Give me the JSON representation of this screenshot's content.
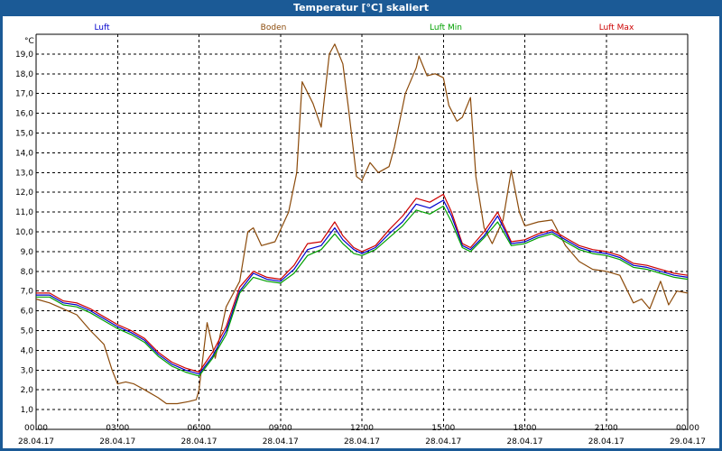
{
  "window": {
    "title": "Temperatur [°C] skaliert"
  },
  "colors": {
    "frame": "#1b5a96",
    "grid": "#000000",
    "luft": "#0000cc",
    "boden": "#8b4a0a",
    "luft_min": "#00a000",
    "luft_max": "#cc0000",
    "base": "#111111"
  },
  "chart_data": {
    "type": "line",
    "ylabel": "°C",
    "ylim": [
      0.0,
      20.0
    ],
    "yticks": [
      "1,0",
      "2,0",
      "3,0",
      "4,0",
      "5,0",
      "6,0",
      "7,0",
      "8,0",
      "9,0",
      "10,0",
      "11,0",
      "12,0",
      "13,0",
      "14,0",
      "15,0",
      "16,0",
      "17,0",
      "18,0",
      "19,0"
    ],
    "xticks": [
      {
        "time": "00:00",
        "date": "28.04.17"
      },
      {
        "time": "03:00",
        "date": "28.04.17"
      },
      {
        "time": "06:00",
        "date": "28.04.17"
      },
      {
        "time": "09:00",
        "date": "28.04.17"
      },
      {
        "time": "12:00",
        "date": "28.04.17"
      },
      {
        "time": "15:00",
        "date": "28.04.17"
      },
      {
        "time": "18:00",
        "date": "28.04.17"
      },
      {
        "time": "21:00",
        "date": "28.04.17"
      },
      {
        "time": "00:00",
        "date": "29.04.17"
      }
    ],
    "xlim_hours": [
      0,
      24
    ],
    "grid": true,
    "legend_position": "top",
    "series": [
      {
        "name": "Luft",
        "color": "#0000cc",
        "points": [
          [
            0,
            6.8
          ],
          [
            0.5,
            6.8
          ],
          [
            1,
            6.4
          ],
          [
            1.5,
            6.3
          ],
          [
            2,
            6.0
          ],
          [
            2.5,
            5.6
          ],
          [
            3,
            5.2
          ],
          [
            3.5,
            4.9
          ],
          [
            4,
            4.5
          ],
          [
            4.5,
            3.8
          ],
          [
            5,
            3.3
          ],
          [
            5.5,
            3.0
          ],
          [
            6,
            2.8
          ],
          [
            6.5,
            3.7
          ],
          [
            7,
            5.0
          ],
          [
            7.5,
            7.0
          ],
          [
            8,
            7.9
          ],
          [
            8.5,
            7.6
          ],
          [
            9,
            7.5
          ],
          [
            9.5,
            8.1
          ],
          [
            10,
            9.1
          ],
          [
            10.5,
            9.3
          ],
          [
            11,
            10.2
          ],
          [
            11.3,
            9.6
          ],
          [
            11.7,
            9.1
          ],
          [
            12,
            8.9
          ],
          [
            12.5,
            9.2
          ],
          [
            13,
            9.9
          ],
          [
            13.5,
            10.5
          ],
          [
            14,
            11.4
          ],
          [
            14.5,
            11.2
          ],
          [
            15,
            11.6
          ],
          [
            15.3,
            10.8
          ],
          [
            15.7,
            9.3
          ],
          [
            16,
            9.1
          ],
          [
            16.5,
            9.8
          ],
          [
            17,
            10.8
          ],
          [
            17.5,
            9.4
          ],
          [
            18,
            9.5
          ],
          [
            18.5,
            9.8
          ],
          [
            19,
            10.0
          ],
          [
            19.5,
            9.6
          ],
          [
            20,
            9.2
          ],
          [
            20.5,
            9.0
          ],
          [
            21,
            8.9
          ],
          [
            21.5,
            8.7
          ],
          [
            22,
            8.3
          ],
          [
            22.5,
            8.2
          ],
          [
            23,
            8.0
          ],
          [
            23.5,
            7.8
          ],
          [
            24,
            7.7
          ]
        ]
      },
      {
        "name": "Boden",
        "color": "#8b4a0a",
        "points": [
          [
            0,
            6.6
          ],
          [
            0.5,
            6.4
          ],
          [
            1,
            6.1
          ],
          [
            1.5,
            5.8
          ],
          [
            2,
            5.0
          ],
          [
            2.5,
            4.3
          ],
          [
            2.8,
            3.0
          ],
          [
            3,
            2.3
          ],
          [
            3.3,
            2.4
          ],
          [
            3.6,
            2.3
          ],
          [
            4,
            2.0
          ],
          [
            4.5,
            1.6
          ],
          [
            4.8,
            1.3
          ],
          [
            5.2,
            1.3
          ],
          [
            5.6,
            1.4
          ],
          [
            5.9,
            1.5
          ],
          [
            6,
            2.0
          ],
          [
            6.3,
            5.4
          ],
          [
            6.6,
            3.6
          ],
          [
            7,
            6.2
          ],
          [
            7.5,
            7.5
          ],
          [
            7.8,
            10.0
          ],
          [
            8,
            10.2
          ],
          [
            8.3,
            9.3
          ],
          [
            8.8,
            9.5
          ],
          [
            9.3,
            11.0
          ],
          [
            9.6,
            13.0
          ],
          [
            9.8,
            17.6
          ],
          [
            10.2,
            16.5
          ],
          [
            10.5,
            15.3
          ],
          [
            10.8,
            19.0
          ],
          [
            11,
            19.5
          ],
          [
            11.3,
            18.5
          ],
          [
            11.5,
            16.3
          ],
          [
            11.8,
            12.8
          ],
          [
            12,
            12.6
          ],
          [
            12.3,
            13.5
          ],
          [
            12.6,
            13.0
          ],
          [
            13,
            13.3
          ],
          [
            13.2,
            14.3
          ],
          [
            13.6,
            17.0
          ],
          [
            14,
            18.3
          ],
          [
            14.1,
            18.9
          ],
          [
            14.4,
            17.9
          ],
          [
            14.7,
            18.0
          ],
          [
            15,
            17.8
          ],
          [
            15.2,
            16.4
          ],
          [
            15.5,
            15.6
          ],
          [
            15.7,
            15.8
          ],
          [
            16,
            16.8
          ],
          [
            16.2,
            12.8
          ],
          [
            16.5,
            10.2
          ],
          [
            16.8,
            9.4
          ],
          [
            17.2,
            10.6
          ],
          [
            17.5,
            13.1
          ],
          [
            17.8,
            11.0
          ],
          [
            18,
            10.3
          ],
          [
            18.5,
            10.5
          ],
          [
            19,
            10.6
          ],
          [
            19.5,
            9.3
          ],
          [
            20,
            8.5
          ],
          [
            20.5,
            8.1
          ],
          [
            21,
            8.0
          ],
          [
            21.5,
            7.8
          ],
          [
            22,
            6.4
          ],
          [
            22.3,
            6.6
          ],
          [
            22.6,
            6.1
          ],
          [
            23,
            7.5
          ],
          [
            23.3,
            6.3
          ],
          [
            23.6,
            7.0
          ],
          [
            24,
            6.9
          ]
        ]
      },
      {
        "name": "Luft Min",
        "color": "#00a000",
        "points": [
          [
            0,
            6.7
          ],
          [
            0.5,
            6.7
          ],
          [
            1,
            6.3
          ],
          [
            1.5,
            6.2
          ],
          [
            2,
            5.9
          ],
          [
            2.5,
            5.5
          ],
          [
            3,
            5.1
          ],
          [
            3.5,
            4.8
          ],
          [
            4,
            4.4
          ],
          [
            4.5,
            3.7
          ],
          [
            5,
            3.2
          ],
          [
            5.5,
            2.9
          ],
          [
            6,
            2.7
          ],
          [
            6.5,
            3.6
          ],
          [
            7,
            4.8
          ],
          [
            7.5,
            6.9
          ],
          [
            8,
            7.7
          ],
          [
            8.5,
            7.5
          ],
          [
            9,
            7.4
          ],
          [
            9.5,
            7.9
          ],
          [
            10,
            8.8
          ],
          [
            10.5,
            9.1
          ],
          [
            11,
            9.9
          ],
          [
            11.3,
            9.4
          ],
          [
            11.7,
            8.9
          ],
          [
            12,
            8.8
          ],
          [
            12.5,
            9.1
          ],
          [
            13,
            9.7
          ],
          [
            13.5,
            10.3
          ],
          [
            14,
            11.1
          ],
          [
            14.5,
            10.9
          ],
          [
            15,
            11.3
          ],
          [
            15.3,
            10.5
          ],
          [
            15.7,
            9.2
          ],
          [
            16,
            9.0
          ],
          [
            16.5,
            9.7
          ],
          [
            17,
            10.5
          ],
          [
            17.5,
            9.3
          ],
          [
            18,
            9.4
          ],
          [
            18.5,
            9.7
          ],
          [
            19,
            9.9
          ],
          [
            19.5,
            9.5
          ],
          [
            20,
            9.1
          ],
          [
            20.5,
            8.9
          ],
          [
            21,
            8.8
          ],
          [
            21.5,
            8.6
          ],
          [
            22,
            8.2
          ],
          [
            22.5,
            8.1
          ],
          [
            23,
            7.9
          ],
          [
            23.5,
            7.7
          ],
          [
            24,
            7.6
          ]
        ]
      },
      {
        "name": "Luft Max",
        "color": "#cc0000",
        "points": [
          [
            0,
            6.9
          ],
          [
            0.5,
            6.9
          ],
          [
            1,
            6.5
          ],
          [
            1.5,
            6.4
          ],
          [
            2,
            6.1
          ],
          [
            2.5,
            5.7
          ],
          [
            3,
            5.3
          ],
          [
            3.5,
            5.0
          ],
          [
            4,
            4.6
          ],
          [
            4.5,
            3.9
          ],
          [
            5,
            3.4
          ],
          [
            5.5,
            3.1
          ],
          [
            6,
            2.9
          ],
          [
            6.5,
            3.9
          ],
          [
            7,
            5.2
          ],
          [
            7.5,
            7.2
          ],
          [
            8,
            8.0
          ],
          [
            8.5,
            7.7
          ],
          [
            9,
            7.6
          ],
          [
            9.5,
            8.3
          ],
          [
            10,
            9.4
          ],
          [
            10.5,
            9.5
          ],
          [
            11,
            10.5
          ],
          [
            11.3,
            9.8
          ],
          [
            11.7,
            9.2
          ],
          [
            12,
            9.0
          ],
          [
            12.5,
            9.3
          ],
          [
            13,
            10.1
          ],
          [
            13.5,
            10.8
          ],
          [
            14,
            11.7
          ],
          [
            14.5,
            11.5
          ],
          [
            15,
            11.9
          ],
          [
            15.3,
            11.0
          ],
          [
            15.7,
            9.4
          ],
          [
            16,
            9.2
          ],
          [
            16.5,
            10.0
          ],
          [
            17,
            11.0
          ],
          [
            17.5,
            9.5
          ],
          [
            18,
            9.6
          ],
          [
            18.5,
            9.9
          ],
          [
            19,
            10.1
          ],
          [
            19.5,
            9.7
          ],
          [
            20,
            9.3
          ],
          [
            20.5,
            9.1
          ],
          [
            21,
            9.0
          ],
          [
            21.5,
            8.8
          ],
          [
            22,
            8.4
          ],
          [
            22.5,
            8.3
          ],
          [
            23,
            8.1
          ],
          [
            23.5,
            7.9
          ],
          [
            24,
            7.8
          ]
        ]
      }
    ]
  }
}
